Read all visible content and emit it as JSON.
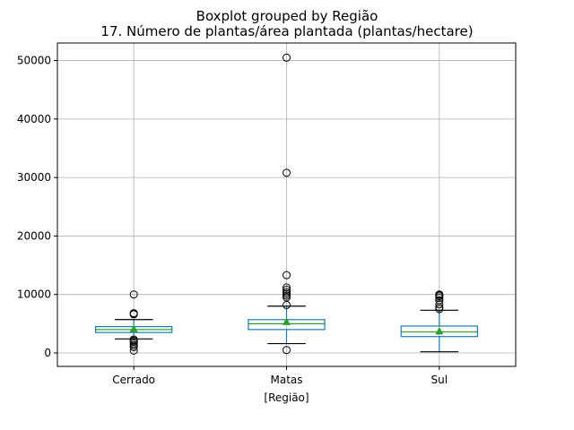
{
  "chart_data": {
    "type": "boxplot",
    "suptitle": "Boxplot grouped by Região",
    "title": "17. Número de plantas/área plantada (plantas/hectare)",
    "xlabel": "[Região]",
    "ylabel": "",
    "ylim": [
      -2300,
      53000
    ],
    "yticks": [
      0,
      10000,
      20000,
      30000,
      40000,
      50000
    ],
    "grid": true,
    "colors": {
      "box": "#1f77b4",
      "median": "#2ca02c",
      "mean": "#2ca02c",
      "grid": "#b0b0b0"
    },
    "categories": [
      "Cerrado",
      "Matas",
      "Sul"
    ],
    "boxes": [
      {
        "label": "Cerrado",
        "whisker_low": 2400,
        "q1": 3500,
        "median": 4000,
        "q3": 4500,
        "whisker_high": 5700,
        "mean": 4100,
        "outliers": [
          10000,
          6800,
          6700,
          6600,
          2300,
          2100,
          1900,
          1600,
          1300,
          1000,
          400
        ]
      },
      {
        "label": "Matas",
        "whisker_low": 1600,
        "q1": 4000,
        "median": 5000,
        "q3": 5700,
        "whisker_high": 8000,
        "mean": 5300,
        "outliers": [
          50500,
          30800,
          13300,
          11200,
          10800,
          10400,
          10100,
          9800,
          9500,
          8200,
          500
        ]
      },
      {
        "label": "Sul",
        "whisker_low": 200,
        "q1": 2800,
        "median": 3600,
        "q3": 4600,
        "whisker_high": 7300,
        "mean": 3700,
        "outliers": [
          10000,
          9900,
          9700,
          9400,
          9000,
          8300,
          7800,
          7500
        ]
      }
    ]
  }
}
